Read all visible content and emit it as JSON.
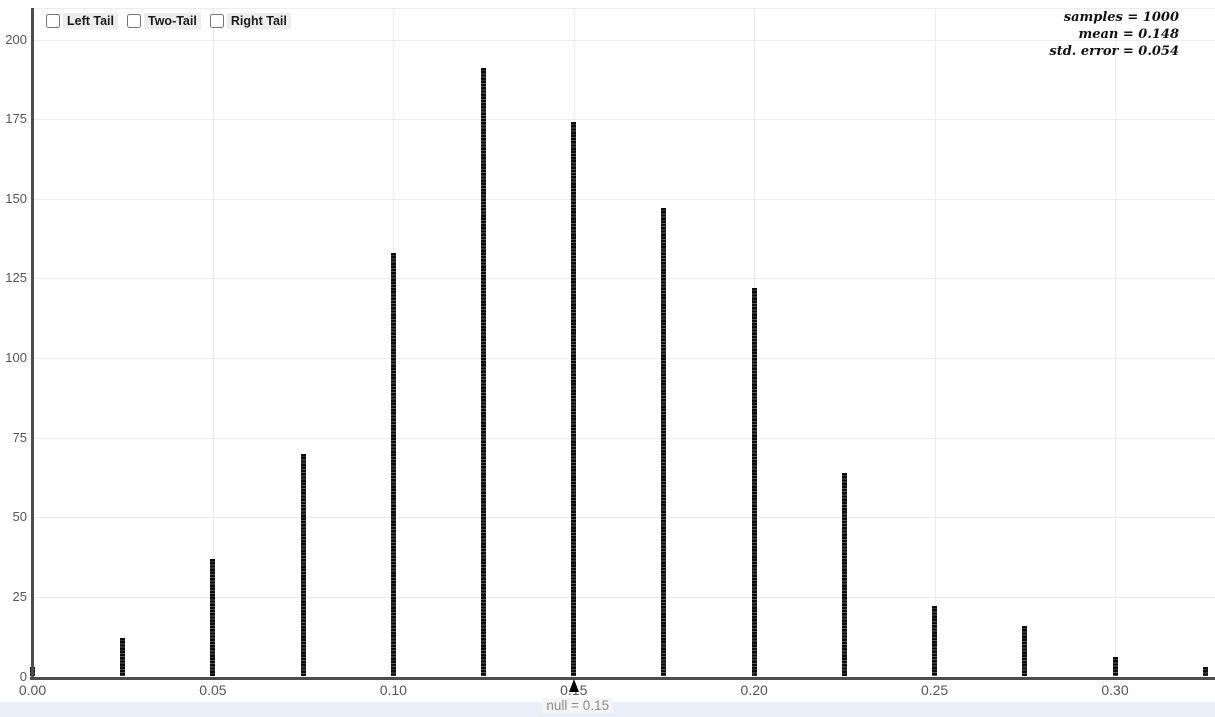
{
  "tail_controls": {
    "items": [
      {
        "label": "Left Tail",
        "checked": false
      },
      {
        "label": "Two-Tail",
        "checked": false
      },
      {
        "label": "Right Tail",
        "checked": false
      }
    ]
  },
  "stats_panel": {
    "lines": [
      "samples = 1000",
      "mean = 0.148",
      "std. error = 0.054"
    ]
  },
  "chart_data": {
    "type": "bar",
    "description": "Sampling distribution dotplot of sample proportions (stacked-dot bars)",
    "x": [
      0.0,
      0.025,
      0.05,
      0.075,
      0.1,
      0.125,
      0.15,
      0.175,
      0.2,
      0.225,
      0.25,
      0.275,
      0.3,
      0.325
    ],
    "values": [
      3,
      12,
      37,
      70,
      133,
      191,
      174,
      147,
      122,
      64,
      22,
      16,
      6,
      3
    ],
    "x_tick_values": [
      0.0,
      0.05,
      0.1,
      0.15,
      0.2,
      0.25,
      0.3
    ],
    "x_tick_labels": [
      "0.00",
      "0.05",
      "0.10",
      "0.15",
      "0.20",
      "0.25",
      "0.30"
    ],
    "y_tick_values": [
      0,
      25,
      50,
      75,
      100,
      125,
      150,
      175,
      200
    ],
    "xlim": [
      0,
      0.328
    ],
    "ylim": [
      0,
      200
    ],
    "grid": true,
    "legend_position": "none",
    "null_value": 0.15,
    "null_label": "null = 0.15",
    "samples": 1000,
    "mean": 0.148,
    "std_error": 0.054,
    "colors": {
      "bar": "#0c0c0c",
      "bar_stripe": "#575757",
      "grid": "#ececec",
      "axis": "#4d4d4d",
      "tick_label": "#555555",
      "null_label": "#8c8c8c",
      "null_label_bg": "#f5f5f5",
      "null_marker": "#000000",
      "footer_band": "#e7eff9",
      "tail_label_bg": "#ededed",
      "stats_text": "#111111"
    }
  }
}
